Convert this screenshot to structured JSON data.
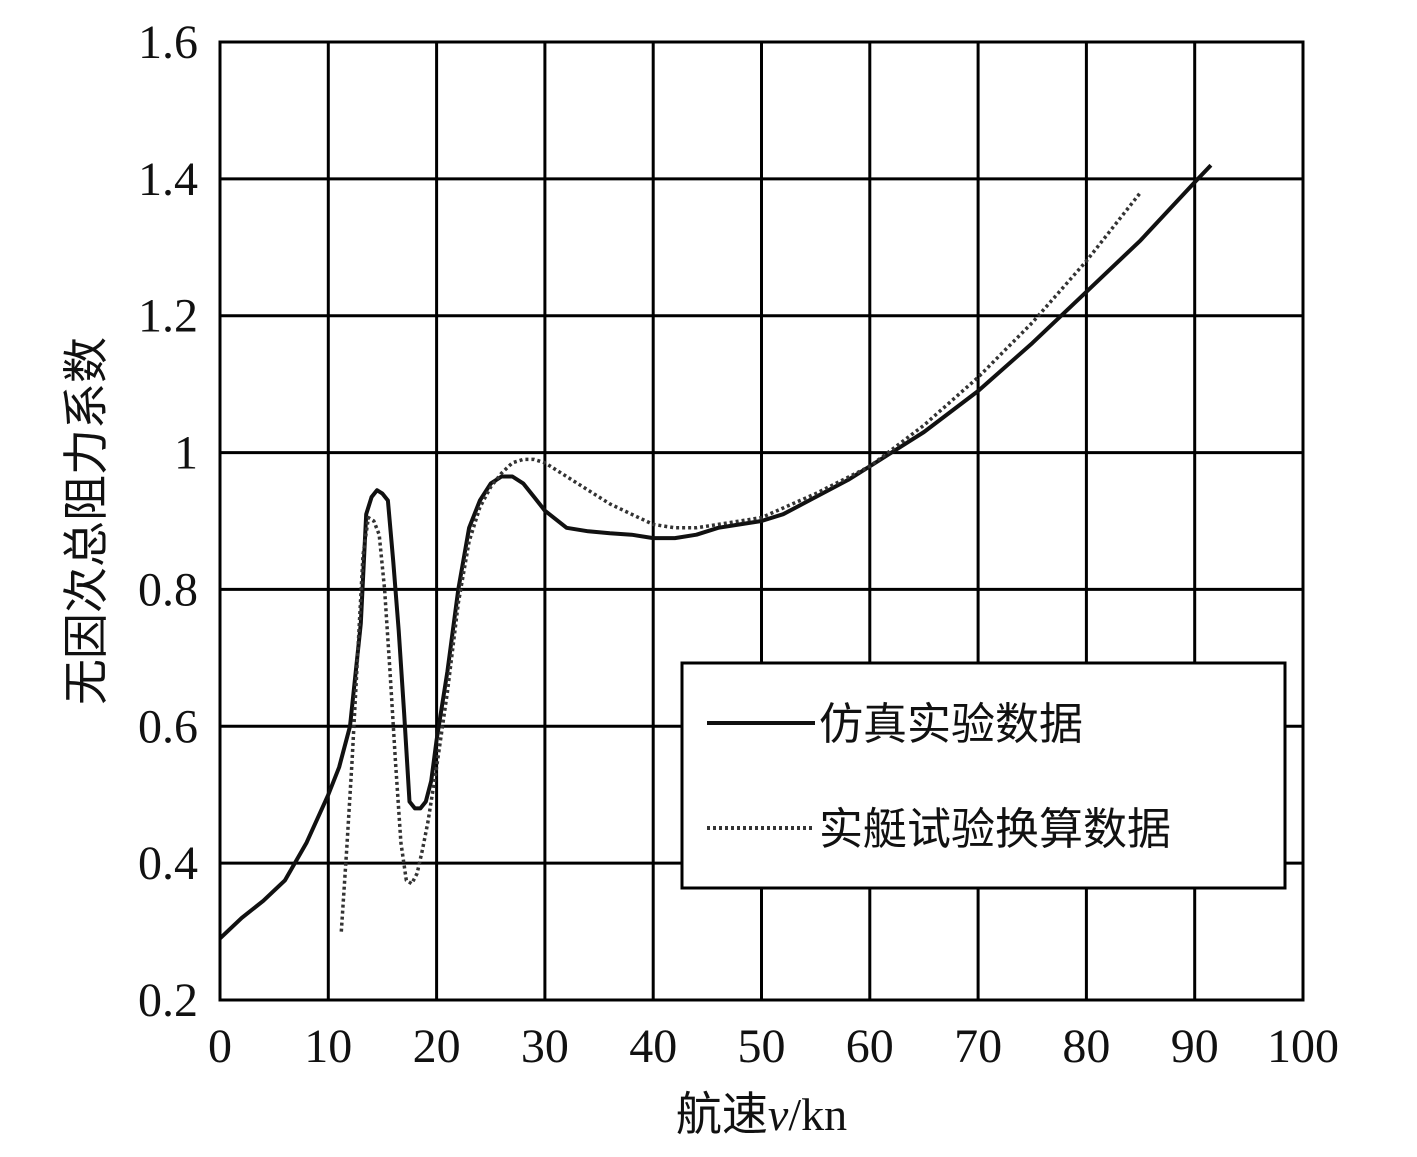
{
  "chart_data": {
    "type": "line",
    "title": "",
    "xlabel_prefix": "航速",
    "xlabel_var": "v",
    "xlabel_suffix": "/kn",
    "ylabel": "无因次总阻力系数",
    "xlim": [
      0,
      100
    ],
    "ylim": [
      0.2,
      1.6
    ],
    "xticks": [
      0,
      10,
      20,
      30,
      40,
      50,
      60,
      70,
      80,
      90,
      100
    ],
    "yticks": [
      0.2,
      0.4,
      0.6,
      0.8,
      1,
      1.2,
      1.4,
      1.6
    ],
    "ytick_labels": [
      "0.2",
      "0.4",
      "0.6",
      "0.8",
      "1",
      "1.2",
      "1.4",
      "1.6"
    ],
    "grid": true,
    "legend_position": "lower-right",
    "series": [
      {
        "name": "仿真实验数据",
        "style": "solid",
        "color": "#111111",
        "x": [
          0,
          2,
          4,
          6,
          8,
          10,
          11,
          12,
          13,
          13.5,
          14,
          14.5,
          15,
          15.5,
          16,
          16.5,
          17,
          17.5,
          18,
          18.5,
          19,
          19.5,
          20,
          21,
          22,
          23,
          24,
          25,
          26,
          27,
          28,
          29,
          30,
          32,
          34,
          36,
          38,
          40,
          42,
          44,
          46,
          48,
          50,
          52,
          55,
          58,
          60,
          62,
          65,
          70,
          75,
          80,
          85,
          90,
          91.5
        ],
        "y": [
          0.29,
          0.32,
          0.345,
          0.375,
          0.43,
          0.5,
          0.54,
          0.6,
          0.75,
          0.91,
          0.935,
          0.945,
          0.94,
          0.93,
          0.84,
          0.74,
          0.62,
          0.49,
          0.48,
          0.48,
          0.49,
          0.52,
          0.58,
          0.68,
          0.8,
          0.89,
          0.93,
          0.955,
          0.965,
          0.965,
          0.955,
          0.935,
          0.915,
          0.89,
          0.885,
          0.882,
          0.88,
          0.875,
          0.875,
          0.88,
          0.89,
          0.895,
          0.9,
          0.91,
          0.935,
          0.96,
          0.98,
          1.0,
          1.03,
          1.09,
          1.16,
          1.235,
          1.31,
          1.395,
          1.42
        ]
      },
      {
        "name": "实艇试验换算数据",
        "style": "dotted",
        "color": "#333333",
        "x": [
          11.2,
          11.7,
          12.2,
          12.7,
          13.2,
          13.7,
          14.2,
          14.7,
          15.2,
          15.7,
          16.2,
          16.7,
          17.2,
          17.7,
          18.2,
          18.7,
          19.2,
          20,
          21,
          22,
          23,
          24,
          25,
          26,
          27,
          28,
          29,
          30,
          32,
          34,
          36,
          38,
          40,
          42,
          44,
          46,
          50,
          55,
          60,
          65,
          70,
          75,
          80,
          85
        ],
        "y": [
          0.3,
          0.42,
          0.55,
          0.7,
          0.85,
          0.905,
          0.9,
          0.88,
          0.8,
          0.68,
          0.55,
          0.43,
          0.375,
          0.37,
          0.385,
          0.42,
          0.46,
          0.54,
          0.65,
          0.78,
          0.87,
          0.92,
          0.95,
          0.97,
          0.985,
          0.99,
          0.99,
          0.985,
          0.965,
          0.945,
          0.925,
          0.91,
          0.895,
          0.89,
          0.89,
          0.895,
          0.905,
          0.94,
          0.98,
          1.04,
          1.11,
          1.19,
          1.28,
          1.38
        ]
      }
    ]
  }
}
